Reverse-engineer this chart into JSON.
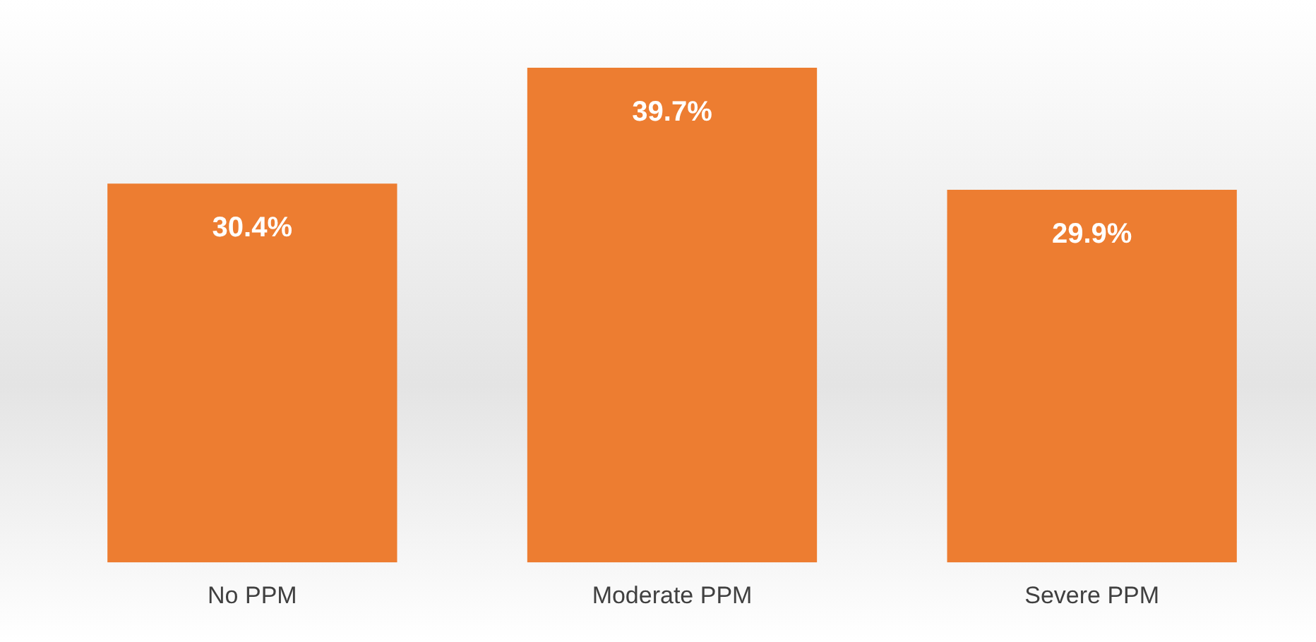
{
  "chart_data": {
    "type": "bar",
    "categories": [
      "No PPM",
      "Moderate PPM",
      "Severe PPM"
    ],
    "values": [
      30.4,
      39.7,
      29.9
    ],
    "value_labels": [
      "30.4%",
      "39.7%",
      "29.9%"
    ],
    "color": "#ed7d31",
    "grid": false,
    "legend": false
  }
}
